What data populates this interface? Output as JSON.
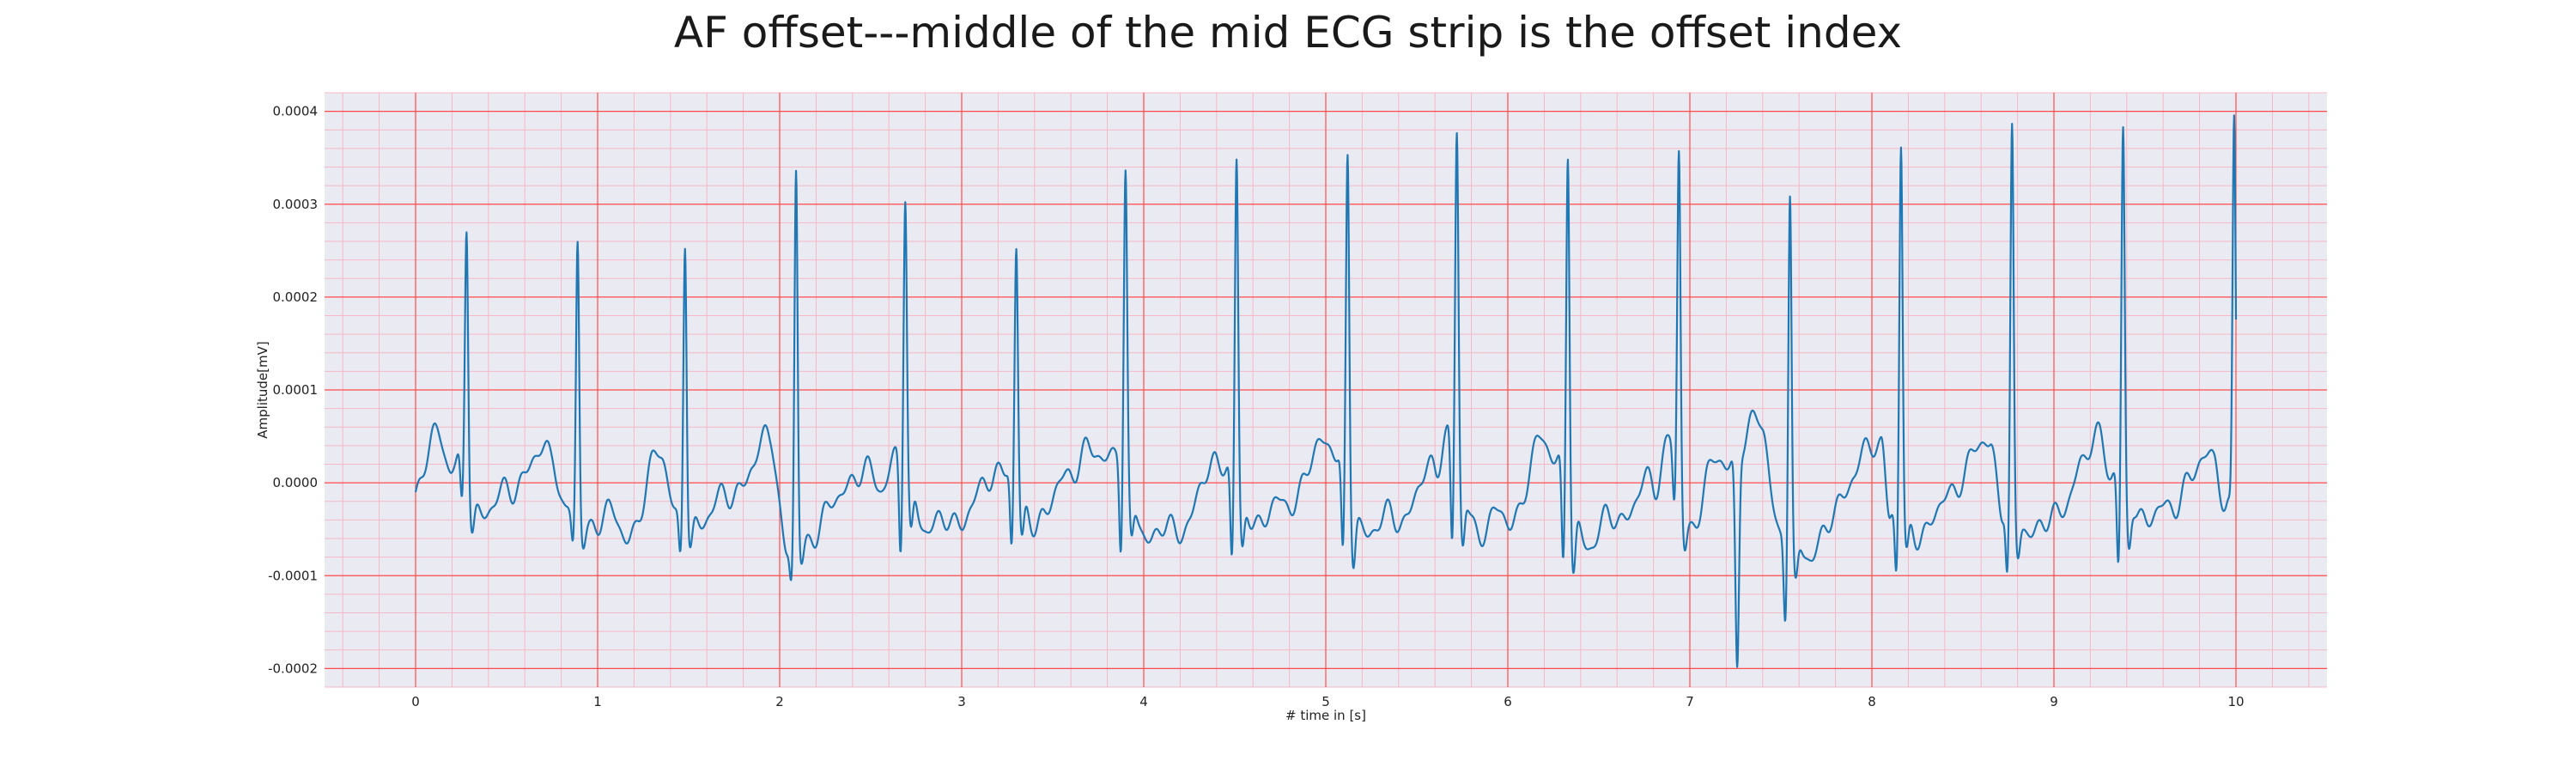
{
  "chart_data": {
    "type": "line",
    "title": "AF offset---middle of the mid ECG strip is the offset index",
    "xlabel": "# time in [s]",
    "ylabel": "Amplitude[mV]",
    "xlim": [
      -0.5,
      10.5
    ],
    "ylim": [
      -0.00022,
      0.00042
    ],
    "xticks": [
      0,
      1,
      2,
      3,
      4,
      5,
      6,
      7,
      8,
      9,
      10
    ],
    "xtick_labels": [
      "0",
      "1",
      "2",
      "3",
      "4",
      "5",
      "6",
      "7",
      "8",
      "9",
      "10"
    ],
    "yticks": [
      -0.0002,
      -0.0001,
      0.0,
      0.0001,
      0.0002,
      0.0003,
      0.0004
    ],
    "ytick_labels": [
      "-0.0002",
      "-0.0001",
      "0.0000",
      "0.0001",
      "0.0002",
      "0.0003",
      "0.0004"
    ],
    "x_minor_step": 0.2,
    "y_minor_step": 2e-05,
    "grid": true,
    "colors": {
      "plot_background": "#eaeaf2",
      "major_grid": "#ff4d4d",
      "minor_grid": "#f5b8c4",
      "line": "#1f77b4"
    },
    "series": [
      {
        "beats": [
          {
            "t": 0.28,
            "peak": 0.00027,
            "trough": -6e-05
          },
          {
            "t": 0.89,
            "peak": 0.000255,
            "trough": -8e-05
          },
          {
            "t": 1.48,
            "peak": 0.000255,
            "trough": -0.0001
          },
          {
            "t": 2.09,
            "peak": 0.000328,
            "trough": -0.000115
          },
          {
            "t": 2.69,
            "peak": 0.000303,
            "trough": -0.000105
          },
          {
            "t": 3.3,
            "peak": 0.000243,
            "trough": -0.0001
          },
          {
            "t": 3.9,
            "peak": 0.00032,
            "trough": -0.000105
          },
          {
            "t": 4.51,
            "peak": 0.000338,
            "trough": -0.000122
          },
          {
            "t": 5.12,
            "peak": 0.000338,
            "trough": -0.000125
          },
          {
            "t": 5.72,
            "peak": 0.000368,
            "trough": -0.000112
          },
          {
            "t": 6.33,
            "peak": 0.00035,
            "trough": -0.00014
          },
          {
            "t": 6.94,
            "peak": 0.00035,
            "trough": -7e-05
          },
          {
            "t": 7.55,
            "peak": 0.000305,
            "trough": -0.000165
          },
          {
            "t": 8.16,
            "peak": 0.000355,
            "trough": -0.00012
          },
          {
            "t": 8.77,
            "peak": 0.000365,
            "trough": -0.00012
          },
          {
            "t": 9.38,
            "peak": 0.000368,
            "trough": -0.000122
          },
          {
            "t": 9.99,
            "peak": 0.000388,
            "trough": -4e-05
          }
        ],
        "lowest_point": {
          "x": 7.26,
          "y": -0.000195
        },
        "baseline": [
          {
            "x": 0.0,
            "y": -2e-05
          },
          {
            "x": 0.12,
            "y": 6e-05
          },
          {
            "x": 0.2,
            "y": 2e-05
          },
          {
            "x": 0.4,
            "y": -3e-05
          },
          {
            "x": 0.6,
            "y": 1e-05
          },
          {
            "x": 0.75,
            "y": 4e-05
          },
          {
            "x": 0.83,
            "y": -4e-05
          },
          {
            "x": 1.05,
            "y": -4e-05
          },
          {
            "x": 1.2,
            "y": -5e-05
          },
          {
            "x": 1.35,
            "y": 4e-05
          },
          {
            "x": 1.45,
            "y": -5e-05
          },
          {
            "x": 1.62,
            "y": -3e-05
          },
          {
            "x": 1.85,
            "y": 1e-05
          },
          {
            "x": 1.95,
            "y": 6e-05
          },
          {
            "x": 2.04,
            "y": -8e-05
          },
          {
            "x": 2.25,
            "y": -4e-05
          },
          {
            "x": 2.4,
            "y": 1e-05
          },
          {
            "x": 2.55,
            "y": 0.0
          },
          {
            "x": 2.63,
            "y": 3e-05
          },
          {
            "x": 2.85,
            "y": -5e-05
          },
          {
            "x": 3.05,
            "y": -3e-05
          },
          {
            "x": 3.2,
            "y": 2e-05
          },
          {
            "x": 3.45,
            "y": -4e-05
          },
          {
            "x": 3.6,
            "y": 2e-05
          },
          {
            "x": 3.75,
            "y": 3e-05
          },
          {
            "x": 3.84,
            "y": 4e-05
          },
          {
            "x": 4.05,
            "y": -6e-05
          },
          {
            "x": 4.25,
            "y": -4e-05
          },
          {
            "x": 4.4,
            "y": 3e-05
          },
          {
            "x": 4.65,
            "y": -4e-05
          },
          {
            "x": 4.85,
            "y": -1e-05
          },
          {
            "x": 5.0,
            "y": 5e-05
          },
          {
            "x": 5.25,
            "y": -5e-05
          },
          {
            "x": 5.45,
            "y": -3e-05
          },
          {
            "x": 5.6,
            "y": 2e-05
          },
          {
            "x": 5.66,
            "y": 6e-05
          },
          {
            "x": 5.85,
            "y": -5e-05
          },
          {
            "x": 6.05,
            "y": -3e-05
          },
          {
            "x": 6.2,
            "y": 5e-05
          },
          {
            "x": 6.45,
            "y": -6e-05
          },
          {
            "x": 6.65,
            "y": -3e-05
          },
          {
            "x": 6.8,
            "y": 0.0
          },
          {
            "x": 6.88,
            "y": 5e-05
          },
          {
            "x": 7.0,
            "y": -5e-05
          },
          {
            "x": 7.1,
            "y": 1e-05
          },
          {
            "x": 7.4,
            "y": 6e-05
          },
          {
            "x": 7.5,
            "y": -6e-05
          },
          {
            "x": 7.7,
            "y": -7e-05
          },
          {
            "x": 7.9,
            "y": 1e-05
          },
          {
            "x": 8.05,
            "y": 5e-05
          },
          {
            "x": 8.1,
            "y": -3e-05
          },
          {
            "x": 8.3,
            "y": -5e-05
          },
          {
            "x": 8.5,
            "y": 1e-05
          },
          {
            "x": 8.65,
            "y": 5e-05
          },
          {
            "x": 8.72,
            "y": -3e-05
          },
          {
            "x": 8.95,
            "y": -5e-05
          },
          {
            "x": 9.15,
            "y": 1e-05
          },
          {
            "x": 9.25,
            "y": 6e-05
          },
          {
            "x": 9.32,
            "y": 1e-05
          },
          {
            "x": 9.55,
            "y": -4e-05
          },
          {
            "x": 9.75,
            "y": 0.0
          },
          {
            "x": 9.88,
            "y": 4e-05
          },
          {
            "x": 9.95,
            "y": -4e-05
          }
        ]
      }
    ]
  }
}
